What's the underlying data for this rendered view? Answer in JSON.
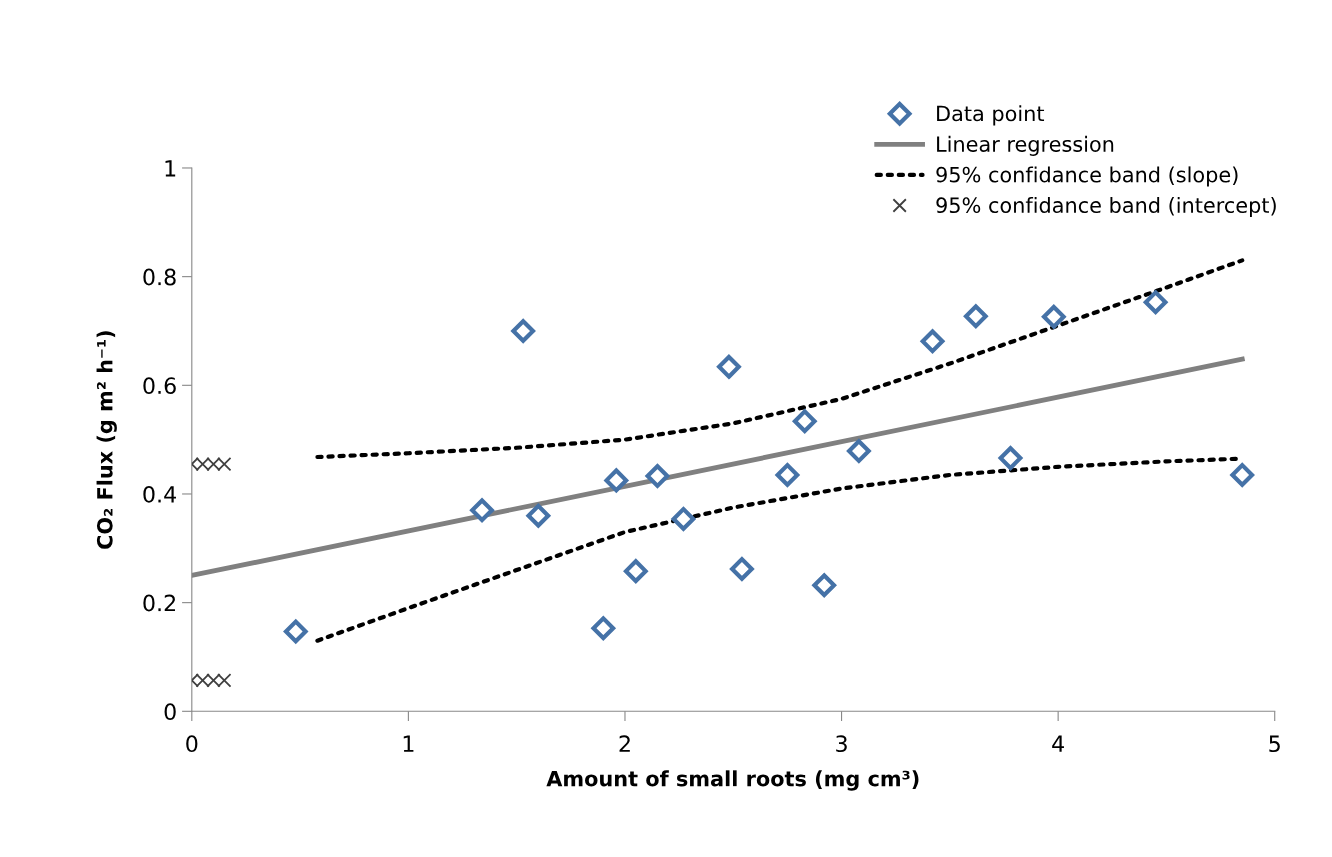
{
  "chart_data": {
    "type": "scatter",
    "xlabel": "Amount of small roots (mg cm³)",
    "ylabel": "CO₂ Flux (g m² h⁻¹)",
    "xlim": [
      0,
      5
    ],
    "ylim": [
      0,
      1
    ],
    "xticks": [
      0,
      1,
      2,
      3,
      4,
      5
    ],
    "yticks": [
      0,
      0.2,
      0.4,
      0.6,
      0.8,
      1
    ],
    "grid": false,
    "legend": "top right",
    "series": [
      {
        "name": "Data point",
        "marker": "diamond",
        "color": "#4572a7",
        "x": [
          0.48,
          1.34,
          1.53,
          1.6,
          1.9,
          1.96,
          2.05,
          2.15,
          2.27,
          2.48,
          2.54,
          2.75,
          2.83,
          2.92,
          3.08,
          3.42,
          3.62,
          3.78,
          3.98,
          4.45,
          4.85
        ],
        "values": [
          0.147,
          0.37,
          0.7,
          0.36,
          0.153,
          0.425,
          0.258,
          0.433,
          0.354,
          0.634,
          0.262,
          0.435,
          0.534,
          0.232,
          0.479,
          0.681,
          0.727,
          0.466,
          0.726,
          0.753,
          0.435
        ]
      },
      {
        "name": "Linear regression",
        "type": "line",
        "line_style": "solid",
        "color": "#808080",
        "x": [
          0,
          4.85
        ],
        "values": [
          0.25,
          0.648
        ]
      },
      {
        "name": "95% confidance band (slope)",
        "type": "line",
        "line_style": "dotted",
        "color": "#000000",
        "x": [
          0.58,
          1,
          1.5,
          2,
          2.5,
          3,
          3.5,
          4,
          4.5,
          4.85
        ],
        "values": [
          0.468,
          0.475,
          0.485,
          0.5,
          0.53,
          0.575,
          0.64,
          0.71,
          0.78,
          0.83
        ]
      },
      {
        "type": "line",
        "line_style": "dotted",
        "color": "#000000",
        "x": [
          0.58,
          1,
          1.5,
          2,
          2.5,
          3,
          3.5,
          4,
          4.5,
          4.85
        ],
        "values": [
          0.13,
          0.19,
          0.26,
          0.33,
          0.375,
          0.41,
          0.435,
          0.45,
          0.46,
          0.465
        ]
      },
      {
        "name": "95% confidance band (intercept)",
        "marker": "cross",
        "color": "#404040",
        "x": [
          0,
          0.05,
          0.1,
          0.15,
          0,
          0.05,
          0.1,
          0.15
        ],
        "values": [
          0.455,
          0.455,
          0.455,
          0.455,
          0.057,
          0.057,
          0.057,
          0.057
        ]
      }
    ]
  }
}
